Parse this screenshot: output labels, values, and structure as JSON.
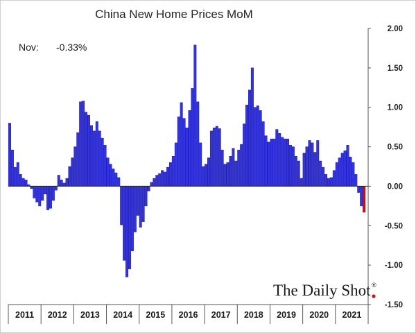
{
  "chart_data": {
    "type": "bar",
    "title": "China New Home Prices MoM",
    "annotation": {
      "label": "Nov:",
      "value": "-0.33%"
    },
    "ylim": [
      -1.5,
      2.0
    ],
    "yticks": [
      "2.00",
      "1.50",
      "1.00",
      "0.50",
      "0.00",
      "-0.50",
      "-1.00",
      "-1.50"
    ],
    "ytick_values": [
      2.0,
      1.5,
      1.0,
      0.5,
      0.0,
      -0.5,
      -1.0,
      -1.5
    ],
    "years": [
      "2011",
      "2012",
      "2013",
      "2014",
      "2015",
      "2016",
      "2017",
      "2018",
      "2019",
      "2020",
      "2021"
    ],
    "months_per_year": 12,
    "series": [
      {
        "name": "China New Home Prices MoM",
        "color": "#3333e0",
        "values": [
          0.8,
          0.46,
          0.24,
          0.3,
          0.15,
          0.1,
          0.08,
          0.02,
          -0.03,
          -0.15,
          -0.2,
          -0.25,
          -0.18,
          -0.1,
          -0.3,
          -0.28,
          -0.18,
          -0.05,
          0.14,
          0.08,
          0.04,
          0.1,
          0.25,
          0.36,
          0.5,
          0.68,
          1.07,
          1.08,
          0.94,
          0.9,
          0.77,
          0.7,
          0.82,
          0.7,
          0.61,
          0.52,
          0.36,
          0.28,
          0.22,
          0.17,
          0.11,
          -0.49,
          -0.94,
          -1.15,
          -1.05,
          -0.82,
          -0.58,
          -0.37,
          -0.52,
          -0.45,
          -0.25,
          -0.06,
          0.05,
          0.1,
          0.14,
          0.16,
          0.2,
          0.18,
          0.24,
          0.3,
          0.38,
          0.55,
          0.88,
          1.06,
          0.86,
          0.74,
          0.96,
          1.24,
          1.79,
          1.07,
          0.55,
          0.25,
          0.28,
          0.36,
          0.7,
          0.74,
          0.76,
          0.73,
          0.46,
          0.28,
          0.3,
          0.38,
          0.48,
          0.32,
          0.46,
          0.53,
          0.79,
          1.03,
          1.22,
          1.5,
          1.0,
          1.02,
          0.96,
          0.82,
          0.64,
          0.56,
          0.6,
          0.6,
          0.72,
          0.67,
          0.62,
          0.6,
          0.6,
          0.52,
          0.5,
          0.38,
          0.32,
          0.1,
          0.42,
          0.5,
          0.58,
          0.55,
          0.43,
          0.58,
          0.32,
          0.24,
          0.15,
          0.1,
          0.11,
          0.2,
          0.3,
          0.36,
          0.42,
          0.45,
          0.52,
          0.37,
          0.3,
          0.15,
          -0.08,
          -0.25,
          -0.33
        ]
      }
    ],
    "highlight": {
      "index": 130,
      "label": "Nov 2021",
      "value": -0.33,
      "color": "#cc1111"
    },
    "grid": false,
    "legend": "none"
  },
  "branding": {
    "name": "The Daily Shot",
    "mark": "®"
  }
}
